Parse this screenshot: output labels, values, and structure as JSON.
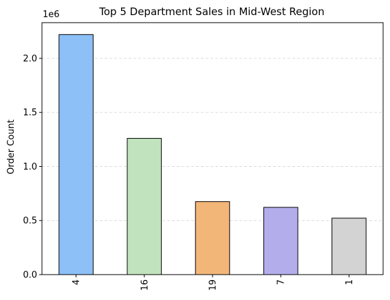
{
  "chart_data": {
    "type": "bar",
    "title": "Top 5 Department Sales in Mid-West Region",
    "xlabel": "",
    "ylabel": "Order Count",
    "offset_text": "1e6",
    "categories": [
      "4",
      "16",
      "19",
      "7",
      "1"
    ],
    "values": [
      2220000,
      1260000,
      675000,
      622000,
      522000
    ],
    "ylim": [
      0,
      2330000
    ],
    "y_ticks": [
      0,
      500000,
      1000000,
      1500000,
      2000000
    ],
    "y_tick_labels": [
      "0.0",
      "0.5",
      "1.0",
      "1.5",
      "2.0"
    ],
    "bar_colors": [
      "#8cc0f7",
      "#c1e3bd",
      "#f3b679",
      "#b3aeeb",
      "#d3d3d3"
    ],
    "bar_edge_color": "#000000",
    "grid": {
      "axis": "y",
      "style": "dashed",
      "color": "#d0d0d0"
    },
    "x_tick_rotation": "vertical",
    "legend": "none"
  }
}
